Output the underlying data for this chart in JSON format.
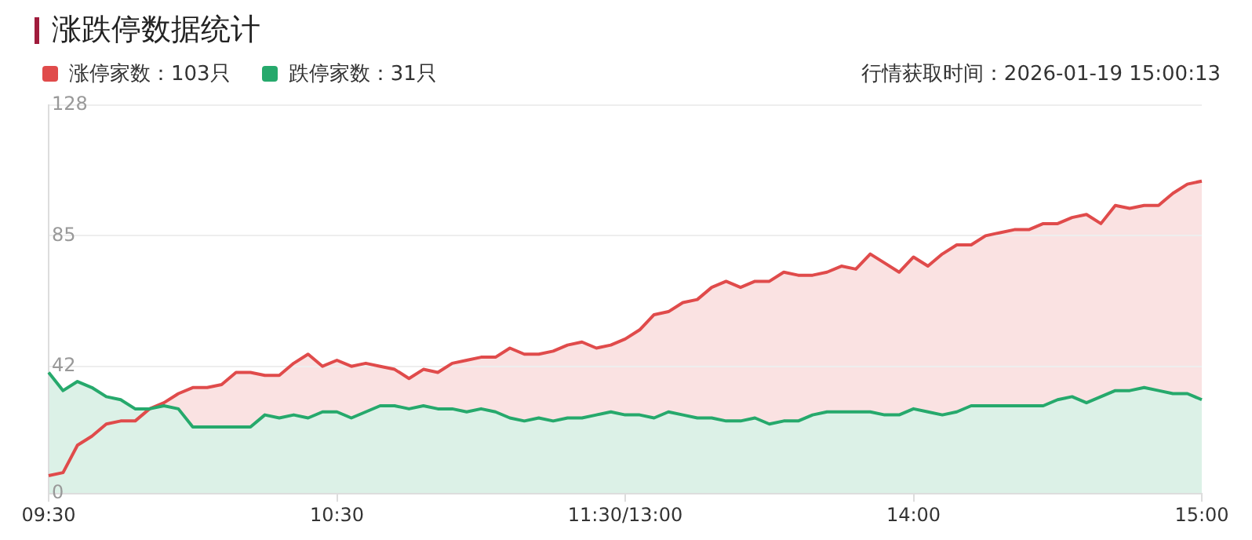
{
  "chart_data": {
    "type": "area",
    "title": "涨跌停数据统计",
    "annotations": [
      "行情获取时间：2026-01-19 15:00:13"
    ],
    "legend": "top left",
    "grid": "y",
    "marker": "none",
    "line_style": "solid",
    "categories": [
      "09:30",
      null,
      null,
      null,
      null,
      null,
      null,
      null,
      null,
      null,
      null,
      null,
      null,
      null,
      null,
      null,
      null,
      null,
      null,
      null,
      "10:30",
      null,
      null,
      null,
      null,
      null,
      null,
      null,
      null,
      null,
      null,
      null,
      null,
      null,
      null,
      null,
      null,
      null,
      null,
      null,
      "11:30/13:00",
      null,
      null,
      null,
      null,
      null,
      null,
      null,
      null,
      null,
      null,
      null,
      null,
      null,
      null,
      null,
      null,
      null,
      null,
      null,
      "14:00",
      null,
      null,
      null,
      null,
      null,
      null,
      null,
      null,
      null,
      null,
      null,
      null,
      null,
      null,
      null,
      null,
      null,
      null,
      null,
      "15:00"
    ],
    "ylim": [
      0,
      128
    ],
    "yticks": [
      0,
      42,
      85,
      128
    ],
    "series": [
      {
        "name": "涨停家数：103只",
        "color": "#e04b4b",
        "values": [
          6,
          7,
          16,
          19,
          23,
          24,
          24,
          28,
          30,
          33,
          35,
          35,
          36,
          40,
          40,
          39,
          39,
          43,
          46,
          42,
          44,
          42,
          43,
          42,
          41,
          38,
          41,
          40,
          43,
          44,
          45,
          45,
          48,
          46,
          46,
          47,
          49,
          50,
          48,
          49,
          51,
          54,
          59,
          60,
          63,
          64,
          68,
          70,
          68,
          70,
          70,
          73,
          72,
          72,
          73,
          75,
          74,
          79,
          76,
          73,
          78,
          75,
          79,
          82,
          82,
          85,
          86,
          87,
          87,
          89,
          89,
          91,
          92,
          89,
          95,
          94,
          95,
          95,
          99,
          102,
          103
        ]
      },
      {
        "name": "跌停家数：31只",
        "color": "#26a96c",
        "values": [
          40,
          34,
          37,
          35,
          32,
          31,
          28,
          28,
          29,
          28,
          22,
          22,
          22,
          22,
          22,
          26,
          25,
          26,
          25,
          27,
          27,
          25,
          27,
          29,
          29,
          28,
          29,
          28,
          28,
          27,
          28,
          27,
          25,
          24,
          25,
          24,
          25,
          25,
          26,
          27,
          26,
          26,
          25,
          27,
          26,
          25,
          25,
          24,
          24,
          25,
          23,
          24,
          24,
          26,
          27,
          27,
          27,
          27,
          26,
          26,
          28,
          27,
          26,
          27,
          29,
          29,
          29,
          29,
          29,
          29,
          31,
          32,
          30,
          32,
          34,
          34,
          35,
          34,
          33,
          33,
          31
        ]
      }
    ]
  }
}
